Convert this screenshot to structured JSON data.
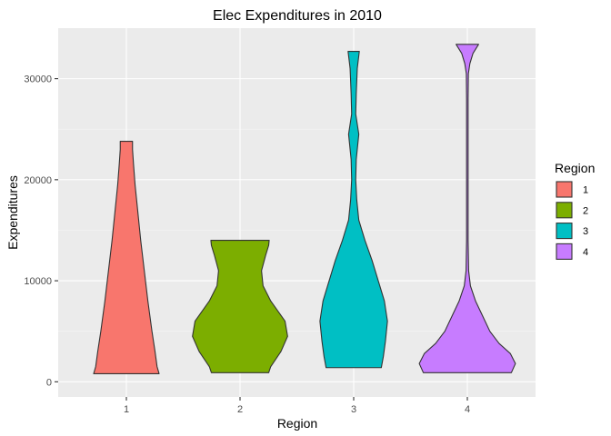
{
  "chart_data": {
    "type": "violin",
    "title": "Elec Expenditures in 2010",
    "xlabel": "Region",
    "ylabel": "Expenditures",
    "categories": [
      "1",
      "2",
      "3",
      "4"
    ],
    "ylim": [
      -1500,
      35000
    ],
    "yticks": [
      0,
      10000,
      20000,
      30000
    ],
    "yticks_labels": [
      "0",
      "10000",
      "20000",
      "30000"
    ],
    "grid": true,
    "legend": {
      "title": "Region",
      "position": "right",
      "entries": [
        "1",
        "2",
        "3",
        "4"
      ]
    },
    "series": [
      {
        "category": "1",
        "color": "#F8766D",
        "min": 800,
        "max": 23800,
        "profile": [
          [
            800,
            0.64
          ],
          [
            1500,
            0.6
          ],
          [
            3000,
            0.56
          ],
          [
            5000,
            0.5
          ],
          [
            8000,
            0.42
          ],
          [
            11000,
            0.35
          ],
          [
            14000,
            0.28
          ],
          [
            17000,
            0.22
          ],
          [
            19500,
            0.17
          ],
          [
            21500,
            0.14
          ],
          [
            23000,
            0.12
          ],
          [
            23800,
            0.12
          ]
        ]
      },
      {
        "category": "2",
        "color": "#7CAE00",
        "min": 900,
        "max": 14000,
        "profile": [
          [
            900,
            0.56
          ],
          [
            1500,
            0.6
          ],
          [
            3000,
            0.8
          ],
          [
            4500,
            0.93
          ],
          [
            6000,
            0.88
          ],
          [
            8000,
            0.6
          ],
          [
            9500,
            0.45
          ],
          [
            11000,
            0.42
          ],
          [
            12500,
            0.5
          ],
          [
            13500,
            0.56
          ],
          [
            14000,
            0.57
          ]
        ]
      },
      {
        "category": "3",
        "color": "#00BFC4",
        "min": 1400,
        "max": 32700,
        "profile": [
          [
            1400,
            0.54
          ],
          [
            2500,
            0.58
          ],
          [
            4000,
            0.62
          ],
          [
            6000,
            0.66
          ],
          [
            8000,
            0.6
          ],
          [
            10000,
            0.48
          ],
          [
            12000,
            0.36
          ],
          [
            14000,
            0.22
          ],
          [
            16000,
            0.1
          ],
          [
            18000,
            0.06
          ],
          [
            20000,
            0.04
          ],
          [
            22000,
            0.05
          ],
          [
            24500,
            0.1
          ],
          [
            26500,
            0.04
          ],
          [
            28500,
            0.05
          ],
          [
            31000,
            0.07
          ],
          [
            32700,
            0.11
          ]
        ]
      },
      {
        "category": "4",
        "color": "#C77CFF",
        "min": 900,
        "max": 33400,
        "profile": [
          [
            900,
            0.86
          ],
          [
            1800,
            0.94
          ],
          [
            2800,
            0.84
          ],
          [
            3800,
            0.62
          ],
          [
            5000,
            0.44
          ],
          [
            6500,
            0.3
          ],
          [
            8000,
            0.16
          ],
          [
            9500,
            0.06
          ],
          [
            11000,
            0.025
          ],
          [
            14000,
            0.015
          ],
          [
            20000,
            0.015
          ],
          [
            28000,
            0.015
          ],
          [
            30500,
            0.02
          ],
          [
            31500,
            0.05
          ],
          [
            32500,
            0.11
          ],
          [
            33400,
            0.22
          ]
        ]
      }
    ]
  }
}
